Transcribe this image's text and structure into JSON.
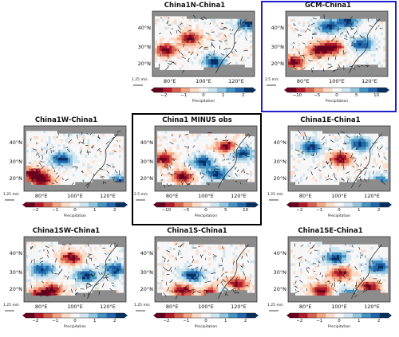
{
  "chart_data": [
    {
      "id": "china1n",
      "type": "heatmap",
      "title": "China1N-China1",
      "lat_ticks": [
        "40°N",
        "30°N",
        "20°N"
      ],
      "lon_ticks": [
        "80°E",
        "100°E",
        "120°E"
      ],
      "ref_vector": "1.25 m/s",
      "colorbar_ticks": [
        "−2",
        "−1",
        "0",
        "1",
        "2"
      ],
      "colorbar_range": [
        -2.5,
        2.5
      ],
      "colorbar_label": "Precipitation"
    },
    {
      "id": "gcm",
      "type": "heatmap",
      "title": "GCM-China1",
      "lat_ticks": [
        "40°N",
        "30°N",
        "20°N"
      ],
      "lon_ticks": [
        "80°E",
        "100°E",
        "120°E"
      ],
      "ref_vector": "2.5 m/s",
      "colorbar_ticks": [
        "−10",
        "−5",
        "0",
        "5",
        "10"
      ],
      "colorbar_range": [
        -12.5,
        12.5
      ],
      "colorbar_label": "Precipitation",
      "highlight": "blue"
    },
    {
      "id": "china1w",
      "type": "heatmap",
      "title": "China1W-China1",
      "lat_ticks": [
        "40°N",
        "30°N",
        "20°N"
      ],
      "lon_ticks": [
        "80°E",
        "100°E",
        "120°E"
      ],
      "ref_vector": "1.25 m/s",
      "colorbar_ticks": [
        "−2",
        "−1",
        "0",
        "1",
        "2"
      ],
      "colorbar_range": [
        -2.5,
        2.5
      ],
      "colorbar_label": "Precipitation"
    },
    {
      "id": "china1obs",
      "type": "heatmap",
      "title": "China1 MINUS obs",
      "lat_ticks": [
        "40°N",
        "30°N",
        "20°N"
      ],
      "lon_ticks": [
        "80°E",
        "100°E",
        "120°E"
      ],
      "ref_vector": "2.5 m/s",
      "colorbar_ticks": [
        "−10",
        "−5",
        "0",
        "5",
        "10"
      ],
      "colorbar_range": [
        -12.5,
        12.5
      ],
      "colorbar_label": "Precipitation",
      "highlight": "black"
    },
    {
      "id": "china1e",
      "type": "heatmap",
      "title": "China1E-China1",
      "lat_ticks": [
        "40°N",
        "30°N",
        "20°N"
      ],
      "lon_ticks": [
        "80°E",
        "100°E",
        "120°E"
      ],
      "ref_vector": "1.25 m/s",
      "colorbar_ticks": [
        "−2",
        "−1",
        "0",
        "1",
        "2"
      ],
      "colorbar_range": [
        -2.5,
        2.5
      ],
      "colorbar_label": "Precipitation"
    },
    {
      "id": "china1sw",
      "type": "heatmap",
      "title": "China1SW-China1",
      "lat_ticks": [
        "40°N",
        "30°N",
        "20°N"
      ],
      "lon_ticks": [
        "80°E",
        "100°E",
        "120°E"
      ],
      "ref_vector": "1.25 m/s",
      "colorbar_ticks": [
        "−2",
        "−1",
        "0",
        "1",
        "2"
      ],
      "colorbar_range": [
        -2.5,
        2.5
      ],
      "colorbar_label": "Precipitation"
    },
    {
      "id": "china1s",
      "type": "heatmap",
      "title": "China1S-China1",
      "lat_ticks": [
        "40°N",
        "30°N",
        "20°N"
      ],
      "lon_ticks": [
        "80°E",
        "100°E",
        "120°E"
      ],
      "ref_vector": "1.25 m/s",
      "colorbar_ticks": [
        "−2",
        "−1",
        "0",
        "1",
        "2"
      ],
      "colorbar_range": [
        -2.5,
        2.5
      ],
      "colorbar_label": "Precipitation"
    },
    {
      "id": "china1se",
      "type": "heatmap",
      "title": "China1SE-China1",
      "lat_ticks": [
        "40°N",
        "30°N",
        "20°N"
      ],
      "lon_ticks": [
        "80°E",
        "100°E",
        "120°E"
      ],
      "ref_vector": "1.25 m/s",
      "colorbar_ticks": [
        "−2",
        "−1",
        "0",
        "1",
        "2"
      ],
      "colorbar_range": [
        -2.5,
        2.5
      ],
      "colorbar_label": "Precipitation"
    }
  ],
  "colors": {
    "map_gray": "#8c8c8c",
    "colormap": [
      "#67001f",
      "#b2182b",
      "#d6604d",
      "#f4a582",
      "#fddbc7",
      "#f7f7f7",
      "#d1e5f0",
      "#92c5de",
      "#4393c3",
      "#2166ac",
      "#053061"
    ],
    "highlight_blue": "#1f1fcf",
    "highlight_black": "#000000"
  }
}
